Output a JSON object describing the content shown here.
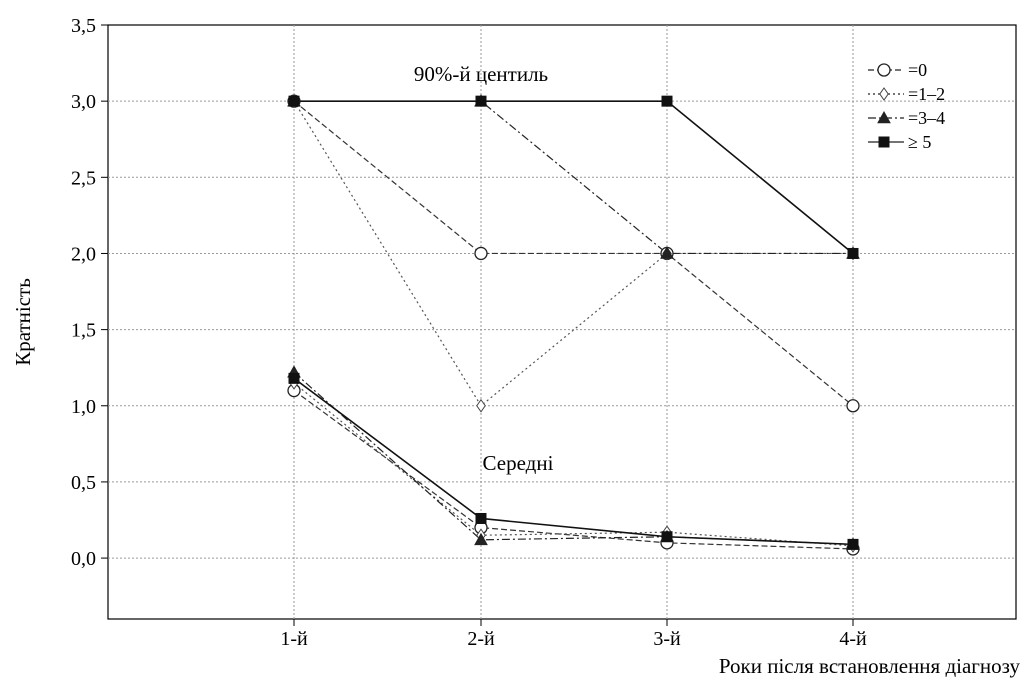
{
  "chart_data": {
    "type": "line",
    "categories": [
      "1-й",
      "2-й",
      "3-й",
      "4-й"
    ],
    "xlabel": "Роки після встановлення діагнозу",
    "ylabel": "Кратність",
    "ylim": [
      -0.4,
      3.5
    ],
    "yticks": [
      0,
      0.5,
      1,
      1.5,
      2,
      2.5,
      3,
      3.5
    ],
    "ytick_labels": [
      "0,0",
      "0,5",
      "1,0",
      "1,5",
      "2,0",
      "2,5",
      "3,0",
      "3,5"
    ],
    "grid": true,
    "legend_position": "top-right",
    "annotations": [
      {
        "text": "90%-й центиль",
        "x": 1.5,
        "y": 3.1
      },
      {
        "text": "Середні",
        "x": 1.5,
        "y": 0.28
      }
    ],
    "groups": [
      {
        "label": "90%-й центиль",
        "series": [
          {
            "name": "=0",
            "marker": "circle",
            "dash": "6,3",
            "stroke": "#333333",
            "values": [
              3.0,
              2.0,
              2.0,
              1.0
            ]
          },
          {
            "name": "=1–2",
            "marker": "diamond",
            "dash": "2,3",
            "stroke": "#555555",
            "values": [
              3.0,
              1.0,
              2.0,
              2.0
            ]
          },
          {
            "name": "=3–4",
            "marker": "triangle",
            "dash": "8,3,2,3",
            "stroke": "#222222",
            "values": [
              3.0,
              3.0,
              2.0,
              2.0
            ]
          },
          {
            "name": "≥ 5",
            "marker": "square",
            "dash": "",
            "stroke": "#111111",
            "values": [
              3.0,
              3.0,
              3.0,
              2.0
            ]
          }
        ]
      },
      {
        "label": "Середні",
        "series": [
          {
            "name": "=0",
            "marker": "circle",
            "dash": "6,3",
            "stroke": "#333333",
            "values": [
              1.1,
              0.2,
              0.1,
              0.06
            ]
          },
          {
            "name": "=1–2",
            "marker": "diamond",
            "dash": "2,3",
            "stroke": "#555555",
            "values": [
              1.15,
              0.15,
              0.17,
              0.08
            ]
          },
          {
            "name": "=3–4",
            "marker": "triangle",
            "dash": "8,3,2,3",
            "stroke": "#222222",
            "values": [
              1.22,
              0.12,
              0.14,
              0.09
            ]
          },
          {
            "name": "≥ 5",
            "marker": "square",
            "dash": "",
            "stroke": "#111111",
            "values": [
              1.18,
              0.26,
              0.14,
              0.09
            ]
          }
        ]
      }
    ],
    "legend": [
      {
        "name": "=0",
        "marker": "circle",
        "dash": "6,3"
      },
      {
        "name": "=1–2",
        "marker": "diamond",
        "dash": "2,3"
      },
      {
        "name": "=3–4",
        "marker": "triangle",
        "dash": "8,3,2,3"
      },
      {
        "name": "≥ 5",
        "marker": "square",
        "dash": ""
      }
    ],
    "colors": {
      "grid": "#9a9a9a",
      "axis": "#000000",
      "line": "#222222"
    }
  }
}
